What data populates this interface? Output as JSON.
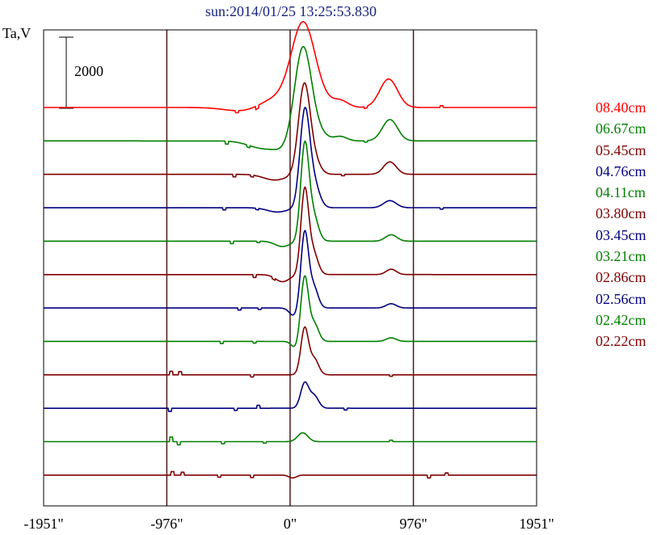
{
  "chart_data": {
    "type": "line",
    "title": "sun:2014/01/25 13:25:53.830",
    "ylabel": "Ta,V",
    "scale_bar": "2000",
    "xlim": [
      -1951,
      1951
    ],
    "xticks": [
      {
        "value": -1951,
        "label": "-1951\""
      },
      {
        "value": -976,
        "label": "-976\""
      },
      {
        "value": 0,
        "label": "0\""
      },
      {
        "value": 976,
        "label": "976\""
      },
      {
        "value": 1951,
        "label": "1951\""
      }
    ],
    "grid_x": [
      -976,
      0,
      976
    ],
    "series": [
      {
        "name": "08.40cm",
        "color": "#ff0000",
        "peaks": [
          [
            -300,
            -180,
            160
          ],
          [
            -120,
            350,
            150
          ],
          [
            100,
            2100,
            90
          ],
          [
            190,
            300,
            100
          ],
          [
            400,
            180,
            60
          ],
          [
            780,
            800,
            70
          ]
        ],
        "blips": [
          [
            -420,
            -60
          ],
          [
            -260,
            -90
          ],
          [
            600,
            -50
          ],
          [
            1200,
            50
          ]
        ]
      },
      {
        "name": "06.67cm",
        "color": "#008000",
        "peaks": [
          [
            -200,
            -220,
            120
          ],
          [
            -60,
            -120,
            60
          ],
          [
            100,
            2500,
            65
          ],
          [
            190,
            300,
            80
          ],
          [
            400,
            120,
            50
          ],
          [
            790,
            600,
            60
          ]
        ],
        "blips": [
          [
            -500,
            -80
          ],
          [
            -330,
            -60
          ],
          [
            600,
            -40
          ]
        ]
      },
      {
        "name": "05.45cm",
        "color": "#800000",
        "peaks": [
          [
            -120,
            -160,
            90
          ],
          [
            110,
            2400,
            45
          ],
          [
            180,
            450,
            50
          ],
          [
            790,
            350,
            50
          ]
        ],
        "blips": [
          [
            -440,
            -70
          ],
          [
            -300,
            -50
          ],
          [
            420,
            -40
          ]
        ]
      },
      {
        "name": "04.76cm",
        "color": "#000080",
        "peaks": [
          [
            -100,
            -120,
            80
          ],
          [
            115,
            2600,
            38
          ],
          [
            185,
            700,
            45
          ],
          [
            790,
            200,
            50
          ]
        ],
        "blips": [
          [
            -520,
            -60
          ],
          [
            -260,
            -40
          ],
          [
            1200,
            -40
          ]
        ]
      },
      {
        "name": "04.11cm",
        "color": "#008000",
        "peaks": [
          [
            -60,
            -150,
            60
          ],
          [
            115,
            2600,
            32
          ],
          [
            180,
            750,
            40
          ],
          [
            800,
            180,
            45
          ]
        ],
        "blips": [
          [
            -460,
            -70
          ],
          [
            -250,
            -40
          ]
        ]
      },
      {
        "name": "03.80cm",
        "color": "#800000",
        "peaks": [
          [
            -60,
            -200,
            55
          ],
          [
            115,
            2300,
            30
          ],
          [
            180,
            650,
            38
          ],
          [
            800,
            150,
            40
          ]
        ],
        "blips": [
          [
            -280,
            -80
          ],
          [
            -130,
            -50
          ]
        ]
      },
      {
        "name": "03.45cm",
        "color": "#000080",
        "peaks": [
          [
            30,
            -220,
            35
          ],
          [
            115,
            2100,
            30
          ],
          [
            185,
            600,
            35
          ],
          [
            800,
            120,
            40
          ]
        ],
        "blips": [
          [
            -400,
            -60
          ],
          [
            -240,
            -40
          ]
        ]
      },
      {
        "name": "03.21cm",
        "color": "#008000",
        "peaks": [
          [
            40,
            -180,
            30
          ],
          [
            115,
            1800,
            30
          ],
          [
            190,
            500,
            35
          ],
          [
            800,
            100,
            40
          ]
        ],
        "blips": [
          [
            -540,
            -60
          ],
          [
            -280,
            -50
          ]
        ]
      },
      {
        "name": "02.86cm",
        "color": "#800000",
        "peaks": [
          [
            115,
            1300,
            30
          ],
          [
            190,
            450,
            35
          ]
        ],
        "blips": [
          [
            -940,
            100
          ],
          [
            -870,
            90
          ],
          [
            -300,
            -60
          ],
          [
            800,
            -40
          ]
        ]
      },
      {
        "name": "02.56cm",
        "color": "#000080",
        "peaks": [
          [
            115,
            700,
            32
          ],
          [
            190,
            350,
            35
          ]
        ],
        "blips": [
          [
            -950,
            -90
          ],
          [
            -430,
            -60
          ],
          [
            -250,
            80
          ],
          [
            440,
            -50
          ]
        ]
      },
      {
        "name": "02.42cm",
        "color": "#008000",
        "peaks": [
          [
            100,
            250,
            40
          ]
        ],
        "blips": [
          [
            -940,
            130
          ],
          [
            -880,
            -90
          ],
          [
            -530,
            -60
          ],
          [
            -200,
            -40
          ],
          [
            800,
            40
          ]
        ]
      },
      {
        "name": "02.22cm",
        "color": "#800000",
        "peaks": [
          [
            20,
            -80,
            30
          ]
        ],
        "blips": [
          [
            -930,
            100
          ],
          [
            -850,
            80
          ],
          [
            -560,
            -60
          ],
          [
            -300,
            -70
          ],
          [
            1100,
            -80
          ],
          [
            1240,
            60
          ]
        ]
      }
    ]
  }
}
